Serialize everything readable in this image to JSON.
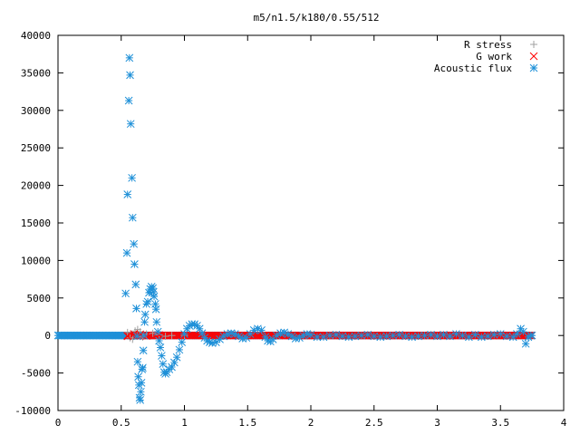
{
  "chart_data": {
    "type": "scatter",
    "title": "m5/n1.5/k180/0.55/512",
    "xlabel": "",
    "ylabel": "",
    "xlim": [
      0,
      4
    ],
    "ylim": [
      -10000,
      40000
    ],
    "x_ticks": [
      0,
      0.5,
      1,
      1.5,
      2,
      2.5,
      3,
      3.5,
      4
    ],
    "x_tick_labels": [
      "0",
      "0.5",
      "1",
      "1.5",
      "2",
      "2.5",
      "3",
      "3.5",
      "4"
    ],
    "y_ticks": [
      -10000,
      -5000,
      0,
      5000,
      10000,
      15000,
      20000,
      25000,
      30000,
      35000,
      40000
    ],
    "y_tick_labels": [
      "-10000",
      "-5000",
      "0",
      "5000",
      "10000",
      "15000",
      "20000",
      "25000",
      "30000",
      "35000",
      "40000"
    ],
    "grid": false,
    "legend_position": "top-right",
    "series": [
      {
        "name": "R stress",
        "marker": "plus",
        "color": "#a0a0a0",
        "points": [
          [
            0.55,
            400
          ],
          [
            0.57,
            -300
          ],
          [
            0.59,
            -500
          ],
          [
            0.61,
            600
          ],
          [
            0.63,
            800
          ],
          [
            0.65,
            500
          ],
          [
            0.67,
            -200
          ],
          [
            0.7,
            200
          ],
          [
            0.75,
            300
          ],
          [
            0.8,
            100
          ],
          [
            0.85,
            -100
          ],
          [
            0.9,
            0
          ],
          [
            1.0,
            0
          ]
        ]
      },
      {
        "name": "G work",
        "marker": "cross",
        "color": "#ff0000",
        "points": [
          [
            0.55,
            -100
          ],
          [
            0.6,
            200
          ],
          [
            0.65,
            150
          ],
          [
            0.7,
            -50
          ],
          [
            0.8,
            50
          ],
          [
            1.0,
            0
          ],
          [
            1.5,
            0
          ],
          [
            2.0,
            0
          ],
          [
            2.5,
            0
          ],
          [
            3.0,
            0
          ],
          [
            3.5,
            0
          ]
        ]
      },
      {
        "name": "Acoustic flux",
        "marker": "star",
        "color": "#1e90d8",
        "points": [
          [
            0.535,
            5600
          ],
          [
            0.545,
            11000
          ],
          [
            0.55,
            18800
          ],
          [
            0.56,
            31300
          ],
          [
            0.565,
            37000
          ],
          [
            0.57,
            34700
          ],
          [
            0.575,
            28200
          ],
          [
            0.585,
            21000
          ],
          [
            0.59,
            15700
          ],
          [
            0.6,
            12200
          ],
          [
            0.605,
            9500
          ],
          [
            0.615,
            6800
          ],
          [
            0.62,
            3600
          ],
          [
            0.625,
            -100
          ],
          [
            0.63,
            -3500
          ],
          [
            0.635,
            -5500
          ],
          [
            0.64,
            -6600
          ],
          [
            0.645,
            -8300
          ],
          [
            0.65,
            -8600
          ],
          [
            0.655,
            -7500
          ],
          [
            0.66,
            -6300
          ],
          [
            0.665,
            -4500
          ],
          [
            0.67,
            -4300
          ],
          [
            0.675,
            -2000
          ],
          [
            0.68,
            0
          ],
          [
            0.685,
            1800
          ],
          [
            0.69,
            2800
          ],
          [
            0.7,
            4200
          ],
          [
            0.71,
            4500
          ],
          [
            0.72,
            5700
          ],
          [
            0.73,
            6200
          ],
          [
            0.74,
            6500
          ],
          [
            0.75,
            6300
          ],
          [
            0.755,
            5800
          ],
          [
            0.76,
            5200
          ],
          [
            0.77,
            4200
          ],
          [
            0.775,
            3500
          ],
          [
            0.78,
            1800
          ],
          [
            0.79,
            500
          ],
          [
            0.8,
            -700
          ],
          [
            0.81,
            -1600
          ],
          [
            0.82,
            -2700
          ],
          [
            0.83,
            -3800
          ],
          [
            0.84,
            -4900
          ],
          [
            0.85,
            -5100
          ],
          [
            0.86,
            -4900
          ],
          [
            0.88,
            -4500
          ],
          [
            0.9,
            -4200
          ],
          [
            0.92,
            -3600
          ],
          [
            0.94,
            -2900
          ],
          [
            0.96,
            -1900
          ],
          [
            0.98,
            -900
          ],
          [
            1.0,
            200
          ],
          [
            1.02,
            900
          ],
          [
            1.04,
            1300
          ],
          [
            1.06,
            1500
          ],
          [
            1.08,
            1500
          ],
          [
            1.1,
            1300
          ],
          [
            1.12,
            900
          ],
          [
            1.14,
            300
          ],
          [
            1.16,
            -300
          ],
          [
            1.18,
            -700
          ],
          [
            1.2,
            -900
          ],
          [
            1.22,
            -1000
          ],
          [
            1.25,
            -900
          ],
          [
            1.28,
            -500
          ],
          [
            1.31,
            -100
          ],
          [
            1.34,
            200
          ],
          [
            1.37,
            300
          ],
          [
            1.4,
            200
          ],
          [
            1.43,
            -100
          ],
          [
            1.46,
            -400
          ],
          [
            1.49,
            -300
          ],
          [
            1.52,
            200
          ],
          [
            1.55,
            700
          ],
          [
            1.58,
            900
          ],
          [
            1.61,
            700
          ],
          [
            1.64,
            -200
          ],
          [
            1.66,
            -700
          ],
          [
            1.68,
            -800
          ],
          [
            1.7,
            -500
          ],
          [
            1.73,
            0
          ],
          [
            1.76,
            300
          ],
          [
            1.79,
            400
          ],
          [
            1.82,
            200
          ],
          [
            1.85,
            -100
          ],
          [
            1.88,
            -400
          ],
          [
            1.91,
            -300
          ],
          [
            1.94,
            0
          ],
          [
            1.97,
            200
          ],
          [
            2.0,
            100
          ],
          [
            2.05,
            -200
          ],
          [
            2.1,
            -200
          ],
          [
            2.15,
            0
          ],
          [
            2.2,
            100
          ],
          [
            2.25,
            -100
          ],
          [
            2.3,
            -200
          ],
          [
            2.35,
            -100
          ],
          [
            2.4,
            0
          ],
          [
            2.45,
            100
          ],
          [
            2.5,
            -100
          ],
          [
            2.55,
            -200
          ],
          [
            2.6,
            -100
          ],
          [
            2.65,
            0
          ],
          [
            2.7,
            100
          ],
          [
            2.75,
            -100
          ],
          [
            2.8,
            -200
          ],
          [
            2.85,
            -100
          ],
          [
            2.9,
            0
          ],
          [
            2.95,
            100
          ],
          [
            3.0,
            -100
          ],
          [
            3.05,
            100
          ],
          [
            3.1,
            -100
          ],
          [
            3.15,
            200
          ],
          [
            3.2,
            0
          ],
          [
            3.25,
            -200
          ],
          [
            3.3,
            100
          ],
          [
            3.35,
            -200
          ],
          [
            3.4,
            -100
          ],
          [
            3.45,
            100
          ],
          [
            3.5,
            200
          ],
          [
            3.55,
            -100
          ],
          [
            3.6,
            -200
          ],
          [
            3.63,
            200
          ],
          [
            3.66,
            900
          ],
          [
            3.68,
            500
          ],
          [
            3.7,
            -1100
          ],
          [
            3.72,
            -200
          ],
          [
            3.74,
            0
          ]
        ]
      }
    ]
  }
}
